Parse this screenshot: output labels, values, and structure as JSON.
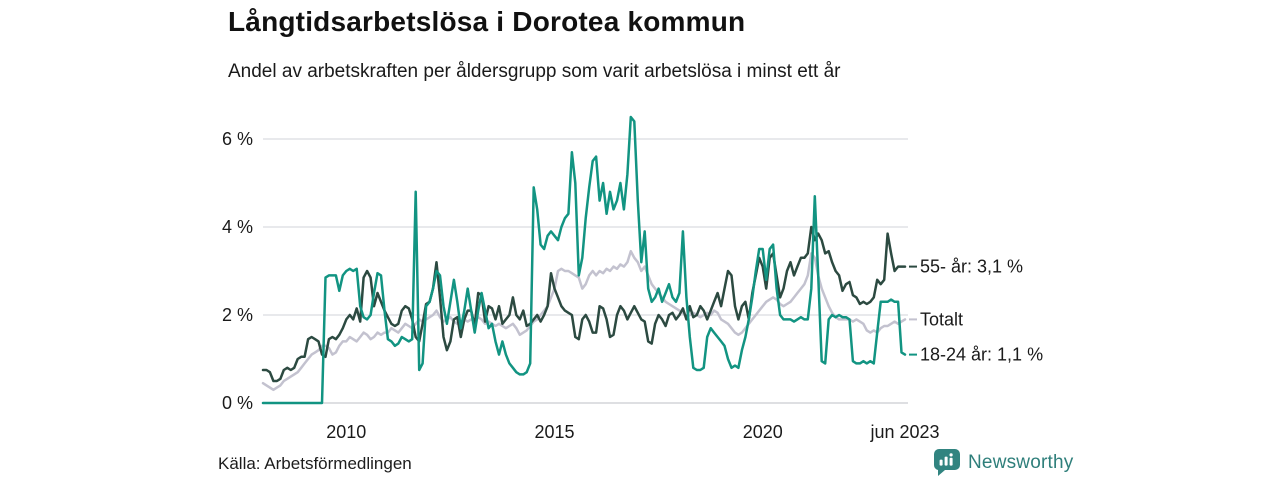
{
  "header": {
    "title": "Långtidsarbetslösa i Dorotea kommun",
    "subtitle": "Andel av arbetskraften per åldersgrupp som varit arbetslösa i minst ett år"
  },
  "footer": {
    "source": "Källa: Arbetsförmedlingen",
    "brand": "Newsworthy"
  },
  "colors": {
    "teal_accent": "#129482",
    "dark_green": "#2C4A41",
    "light_gray": "#C3C2CF",
    "grid": "#DADCE1",
    "grid_zero": "#C9CCD1",
    "text": "#1A1A1A",
    "brand_teal": "#2F7F7B",
    "logo_fill": "#318480"
  },
  "chart_data": {
    "type": "line",
    "title": "Långtidsarbetslösa i Dorotea kommun",
    "subtitle": "Andel av arbetskraften per åldersgrupp som varit arbetslösa i minst ett år",
    "unit": "%",
    "frequency": "monthly",
    "start_period": "jan 2008",
    "end_period": "jun 2023",
    "grid": "horizontal",
    "legend_position": "right-end-labels",
    "x_axis": {
      "ticks": [
        {
          "t": 24,
          "label": "2010"
        },
        {
          "t": 84,
          "label": "2015"
        },
        {
          "t": 144,
          "label": "2020"
        },
        {
          "t": 185,
          "label": "jun 2023"
        }
      ]
    },
    "y_axis": {
      "ticks": [
        {
          "v": 0,
          "label": "0 %"
        },
        {
          "v": 2,
          "label": "2 %"
        },
        {
          "v": 4,
          "label": "4 %"
        },
        {
          "v": 6,
          "label": "6 %"
        }
      ],
      "range": [
        0,
        6.6
      ]
    },
    "series": [
      {
        "name": "Totalt",
        "end_label": "Totalt",
        "end_value": 1.9,
        "color": "#C3C2CF",
        "values": [
          0.45,
          0.4,
          0.35,
          0.3,
          0.35,
          0.4,
          0.5,
          0.55,
          0.6,
          0.65,
          0.7,
          0.8,
          0.9,
          1.0,
          1.1,
          1.15,
          1.2,
          1.3,
          1.3,
          1.25,
          1.1,
          1.15,
          1.3,
          1.4,
          1.4,
          1.5,
          1.45,
          1.4,
          1.5,
          1.6,
          1.55,
          1.45,
          1.5,
          1.6,
          1.55,
          1.6,
          1.6,
          1.7,
          1.65,
          1.6,
          1.7,
          1.8,
          1.75,
          1.7,
          1.8,
          1.9,
          1.85,
          1.9,
          1.95,
          2.0,
          2.1,
          1.95,
          1.85,
          1.9,
          1.95,
          1.85,
          1.8,
          1.85,
          1.9,
          1.85,
          1.9,
          1.85,
          1.95,
          1.9,
          1.8,
          1.85,
          1.8,
          1.75,
          1.8,
          1.75,
          1.7,
          1.75,
          1.8,
          1.7,
          1.55,
          1.6,
          1.65,
          1.75,
          1.85,
          1.9,
          2.0,
          2.1,
          2.2,
          2.4,
          2.6,
          3.0,
          3.05,
          3.0,
          3.0,
          2.95,
          2.9,
          2.85,
          2.6,
          2.7,
          2.9,
          3.0,
          2.9,
          3.0,
          2.95,
          3.05,
          3.0,
          3.1,
          3.05,
          3.15,
          3.1,
          3.2,
          3.45,
          3.3,
          3.2,
          3.0,
          3.1,
          2.9,
          2.7,
          2.6,
          2.5,
          2.4,
          2.3,
          2.25,
          2.2,
          2.15,
          2.1,
          2.05,
          1.95,
          2.0,
          2.05,
          2.0,
          1.95,
          2.0,
          2.05,
          2.0,
          2.1,
          2.05,
          1.9,
          1.85,
          1.8,
          1.7,
          1.6,
          1.55,
          1.6,
          1.7,
          1.8,
          1.9,
          2.0,
          2.1,
          2.2,
          2.3,
          2.35,
          2.4,
          2.35,
          2.25,
          2.2,
          2.25,
          2.3,
          2.4,
          2.5,
          2.6,
          2.7,
          2.9,
          3.4,
          3.3,
          2.9,
          2.6,
          2.4,
          2.2,
          2.05,
          1.95,
          1.9,
          1.9,
          1.9,
          1.9,
          1.85,
          1.9,
          1.85,
          1.8,
          1.65,
          1.6,
          1.65,
          1.6,
          1.7,
          1.75,
          1.75,
          1.8,
          1.85,
          1.8,
          1.85,
          1.9
        ]
      },
      {
        "name": "55- år",
        "end_label": "55- år: 3,1 %",
        "end_value": 3.1,
        "color": "#2C4A41",
        "values": [
          0.75,
          0.75,
          0.7,
          0.5,
          0.5,
          0.55,
          0.75,
          0.8,
          0.75,
          0.8,
          1.0,
          1.05,
          1.05,
          1.45,
          1.5,
          1.45,
          1.4,
          1.1,
          1.05,
          1.45,
          1.5,
          1.45,
          1.55,
          1.7,
          1.9,
          2.0,
          1.9,
          2.15,
          1.85,
          2.85,
          3.0,
          2.85,
          2.2,
          2.5,
          2.3,
          2.1,
          1.95,
          1.8,
          1.75,
          1.8,
          2.1,
          2.2,
          2.15,
          1.9,
          1.5,
          1.4,
          1.8,
          2.25,
          2.3,
          2.6,
          3.2,
          2.4,
          1.5,
          1.2,
          1.4,
          1.9,
          1.95,
          1.5,
          1.9,
          2.1,
          2.1,
          1.75,
          2.5,
          2.45,
          1.85,
          2.2,
          2.15,
          1.9,
          2.2,
          1.8,
          1.9,
          2.0,
          2.4,
          2.0,
          1.9,
          2.1,
          1.75,
          1.8,
          1.9,
          2.0,
          1.85,
          2.0,
          2.2,
          2.95,
          2.6,
          2.4,
          2.2,
          2.1,
          2.05,
          2.0,
          1.5,
          1.45,
          1.9,
          2.0,
          1.85,
          1.6,
          1.6,
          2.2,
          2.15,
          1.9,
          1.5,
          1.55,
          2.0,
          2.2,
          2.1,
          1.9,
          2.05,
          2.2,
          2.05,
          1.9,
          1.85,
          1.4,
          1.35,
          1.8,
          2.0,
          1.9,
          1.75,
          2.0,
          2.05,
          1.9,
          2.0,
          2.15,
          1.9,
          2.2,
          1.95,
          2.0,
          2.2,
          2.1,
          1.9,
          2.1,
          2.3,
          2.5,
          2.2,
          2.6,
          3.0,
          2.9,
          2.2,
          1.9,
          2.2,
          2.3,
          1.9,
          2.5,
          2.9,
          3.3,
          3.1,
          2.6,
          3.3,
          3.4,
          2.9,
          2.4,
          2.6,
          3.0,
          3.2,
          2.9,
          3.1,
          3.3,
          3.3,
          3.4,
          4.0,
          3.7,
          3.85,
          3.7,
          3.4,
          3.45,
          3.2,
          3.0,
          2.9,
          2.55,
          2.7,
          2.75,
          2.45,
          2.4,
          2.25,
          2.3,
          2.25,
          2.3,
          2.4,
          2.8,
          2.7,
          2.8,
          3.85,
          3.4,
          3.0,
          3.1,
          3.1,
          3.1
        ]
      },
      {
        "name": "18-24 år",
        "end_label": "18-24 år: 1,1 %",
        "end_value": 1.1,
        "color": "#129482",
        "values": [
          0,
          0,
          0,
          0,
          0,
          0,
          0,
          0,
          0,
          0,
          0,
          0,
          0,
          0,
          0,
          0,
          0,
          0,
          2.85,
          2.9,
          2.9,
          2.9,
          2.55,
          2.9,
          3.0,
          3.05,
          3.0,
          3.05,
          2.2,
          1.95,
          1.9,
          2.0,
          2.5,
          2.95,
          2.9,
          2.1,
          1.45,
          1.4,
          1.3,
          1.35,
          1.5,
          1.45,
          1.4,
          1.45,
          4.8,
          0.75,
          0.9,
          2.2,
          2.3,
          2.6,
          3.0,
          2.9,
          2.2,
          1.8,
          2.3,
          2.8,
          2.3,
          1.7,
          2.1,
          2.6,
          2.1,
          1.6,
          2.1,
          2.5,
          2.1,
          1.7,
          1.8,
          1.4,
          1.1,
          1.4,
          1.1,
          0.9,
          0.8,
          0.7,
          0.65,
          0.65,
          0.7,
          0.9,
          4.9,
          4.4,
          3.6,
          3.5,
          3.8,
          3.9,
          3.8,
          3.7,
          4.0,
          4.2,
          4.3,
          5.7,
          5.0,
          2.9,
          3.3,
          4.2,
          4.9,
          5.5,
          5.6,
          4.6,
          5.0,
          4.3,
          4.8,
          4.4,
          4.6,
          5.0,
          4.4,
          5.2,
          6.5,
          6.4,
          4.6,
          3.2,
          3.9,
          2.6,
          2.3,
          2.4,
          2.6,
          2.3,
          2.5,
          2.7,
          2.4,
          2.3,
          2.5,
          3.9,
          2.4,
          1.5,
          0.8,
          0.75,
          0.75,
          0.8,
          1.5,
          1.7,
          1.6,
          1.5,
          1.4,
          1.3,
          1.0,
          0.8,
          0.85,
          0.8,
          1.2,
          1.5,
          1.9,
          2.4,
          3.0,
          3.5,
          3.5,
          2.8,
          3.5,
          3.6,
          2.6,
          2.0,
          1.9,
          1.9,
          1.9,
          1.85,
          1.9,
          1.95,
          1.9,
          1.9,
          2.6,
          4.7,
          2.9,
          0.95,
          0.9,
          1.9,
          2.0,
          1.95,
          2.0,
          1.95,
          1.95,
          1.9,
          0.95,
          0.9,
          0.9,
          0.95,
          0.9,
          0.95,
          0.9,
          1.6,
          2.3,
          2.3,
          2.3,
          2.35,
          2.3,
          2.3,
          1.15,
          1.1
        ]
      }
    ]
  }
}
